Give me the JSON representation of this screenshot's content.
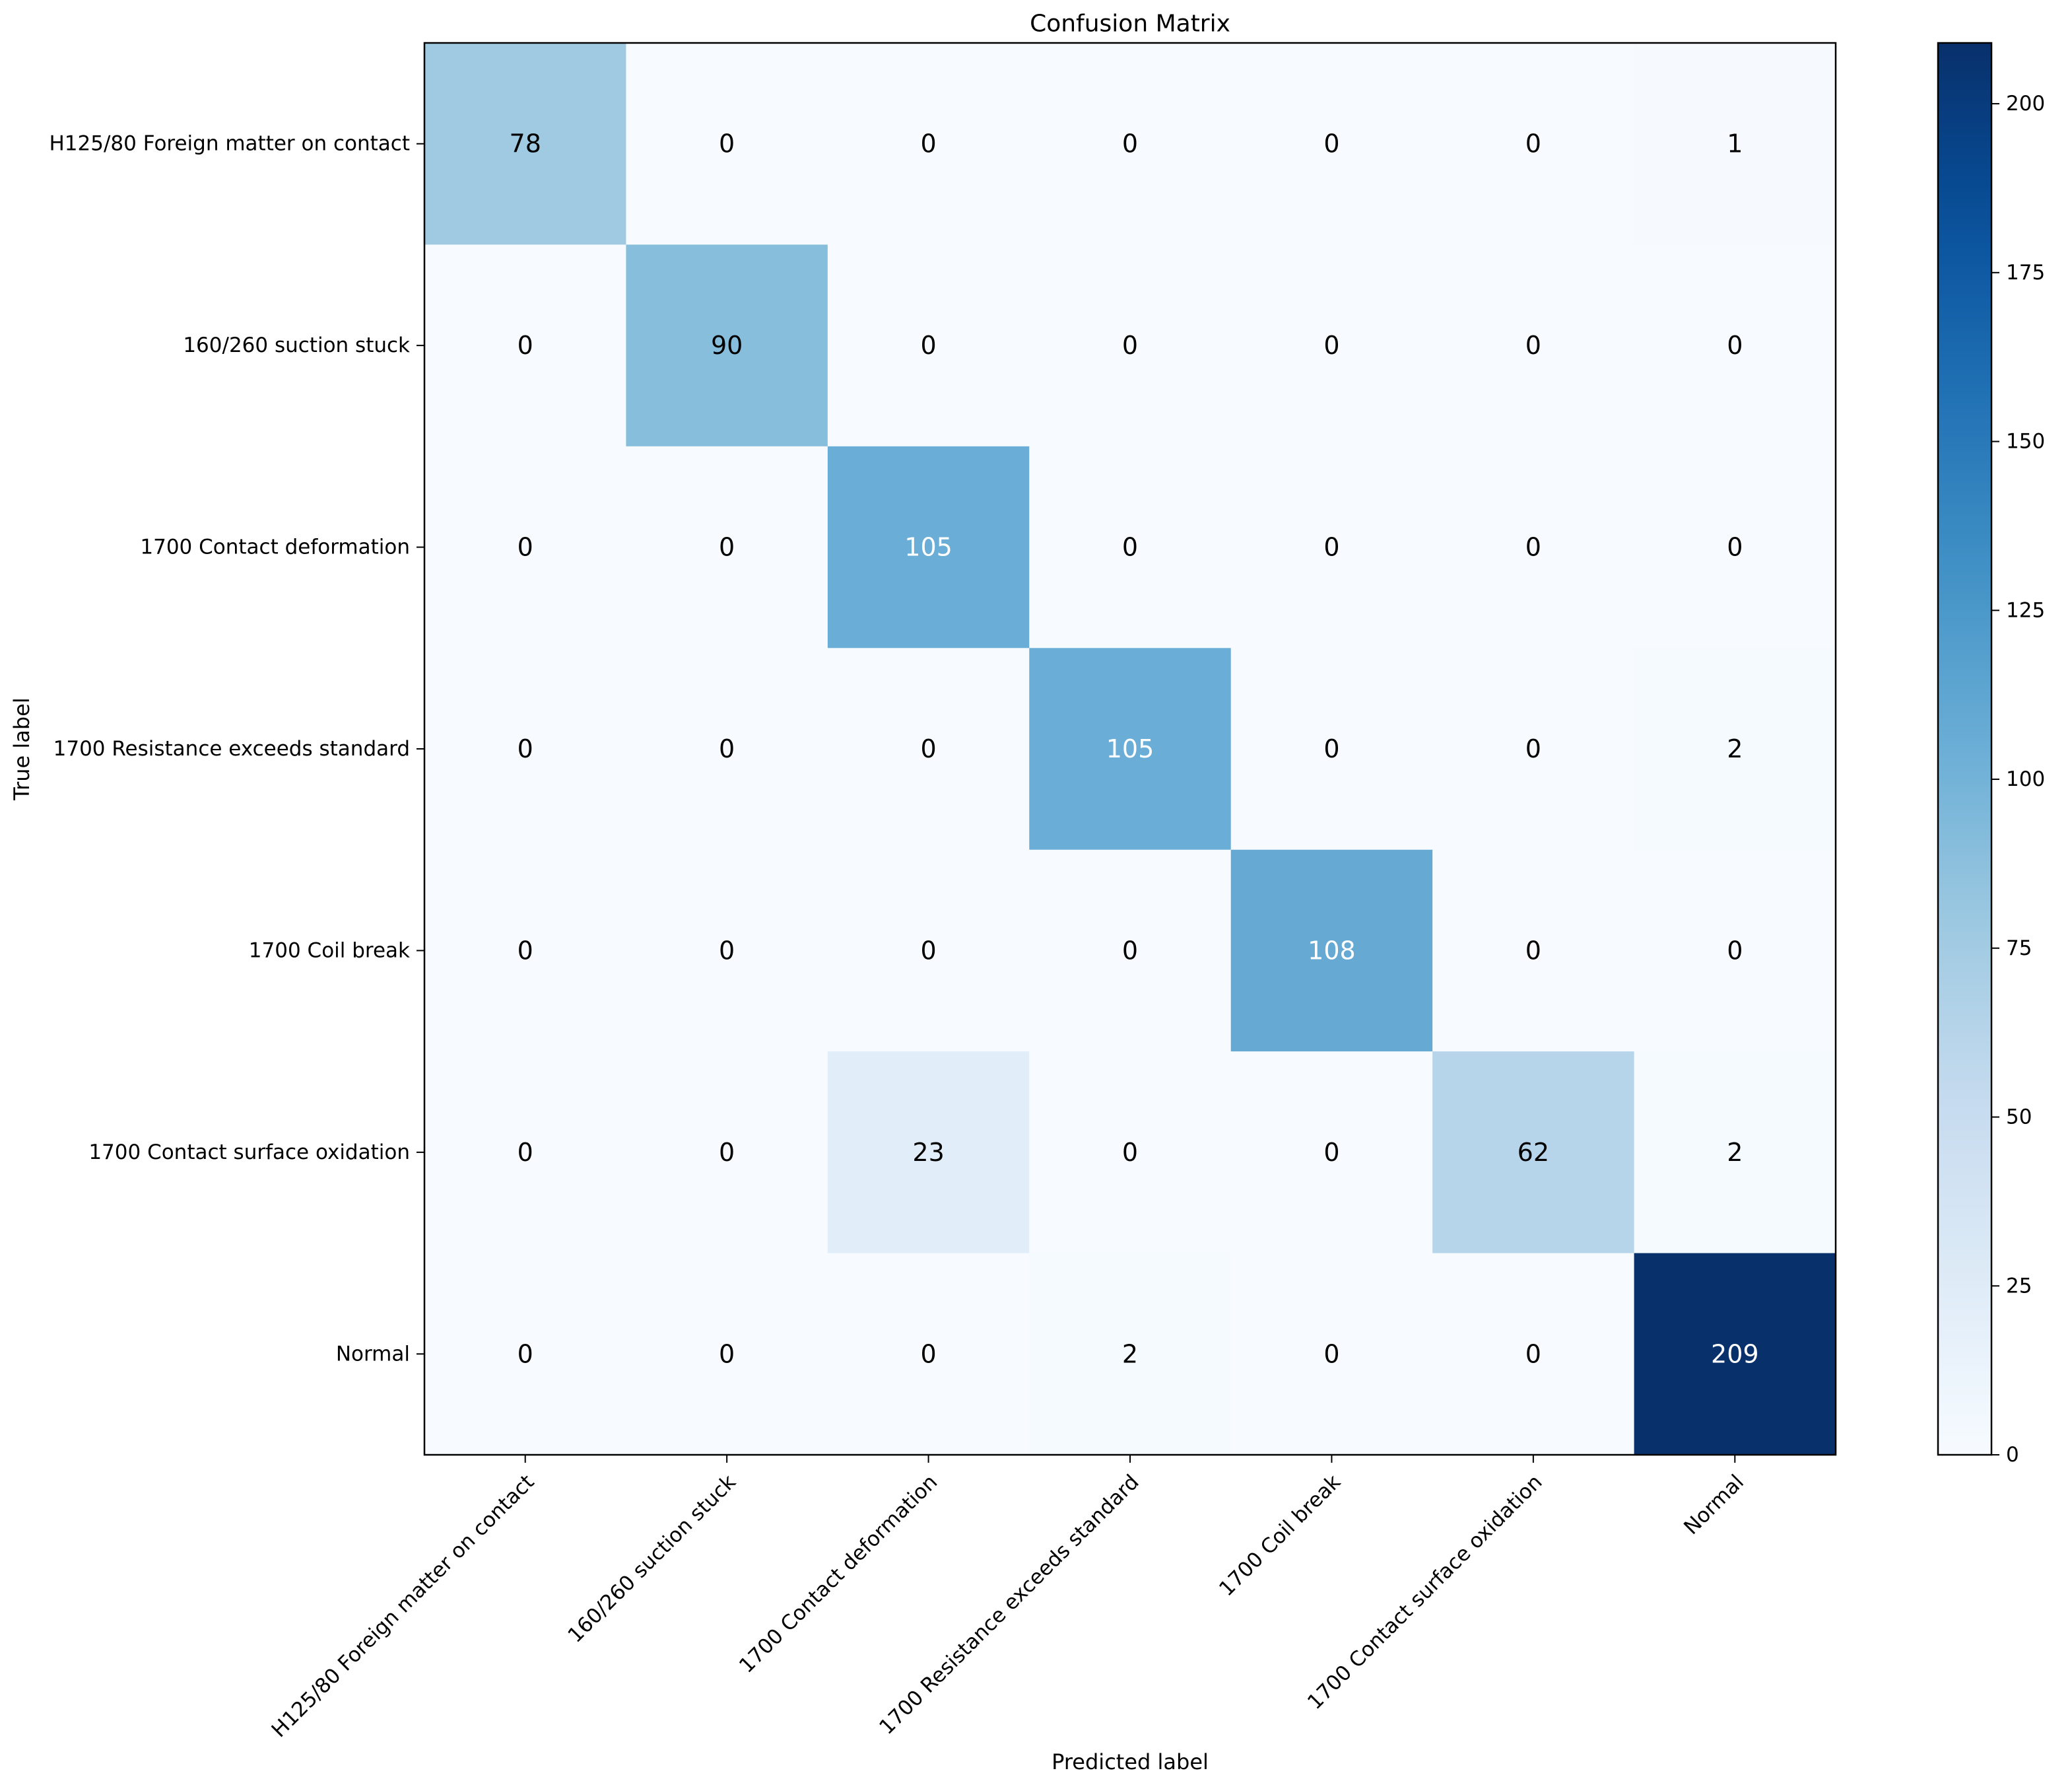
{
  "chart_data": {
    "type": "heatmap",
    "title": "Confusion Matrix",
    "xlabel": "Predicted label",
    "ylabel": "True label",
    "row_labels": [
      "H125/80 Foreign matter on contact",
      "160/260 suction stuck",
      "1700 Contact deformation",
      "1700 Resistance exceeds standard",
      "1700 Coil break",
      "1700 Contact surface oxidation",
      "Normal"
    ],
    "col_labels": [
      "H125/80 Foreign matter on contact",
      "160/260 suction stuck",
      "1700 Contact deformation",
      "1700 Resistance exceeds standard",
      "1700 Coil break",
      "1700 Contact surface oxidation",
      "Normal"
    ],
    "matrix": [
      [
        78,
        0,
        0,
        0,
        0,
        0,
        1
      ],
      [
        0,
        90,
        0,
        0,
        0,
        0,
        0
      ],
      [
        0,
        0,
        105,
        0,
        0,
        0,
        0
      ],
      [
        0,
        0,
        0,
        105,
        0,
        0,
        2
      ],
      [
        0,
        0,
        0,
        0,
        108,
        0,
        0
      ],
      [
        0,
        0,
        23,
        0,
        0,
        62,
        2
      ],
      [
        0,
        0,
        0,
        2,
        0,
        0,
        209
      ]
    ],
    "colorbar": {
      "colormap": "Blues",
      "vmin": 0,
      "vmax": 209,
      "ticks": [
        0,
        25,
        50,
        75,
        100,
        125,
        150,
        175,
        200
      ]
    },
    "text_threshold": 104.5,
    "grid": false
  }
}
